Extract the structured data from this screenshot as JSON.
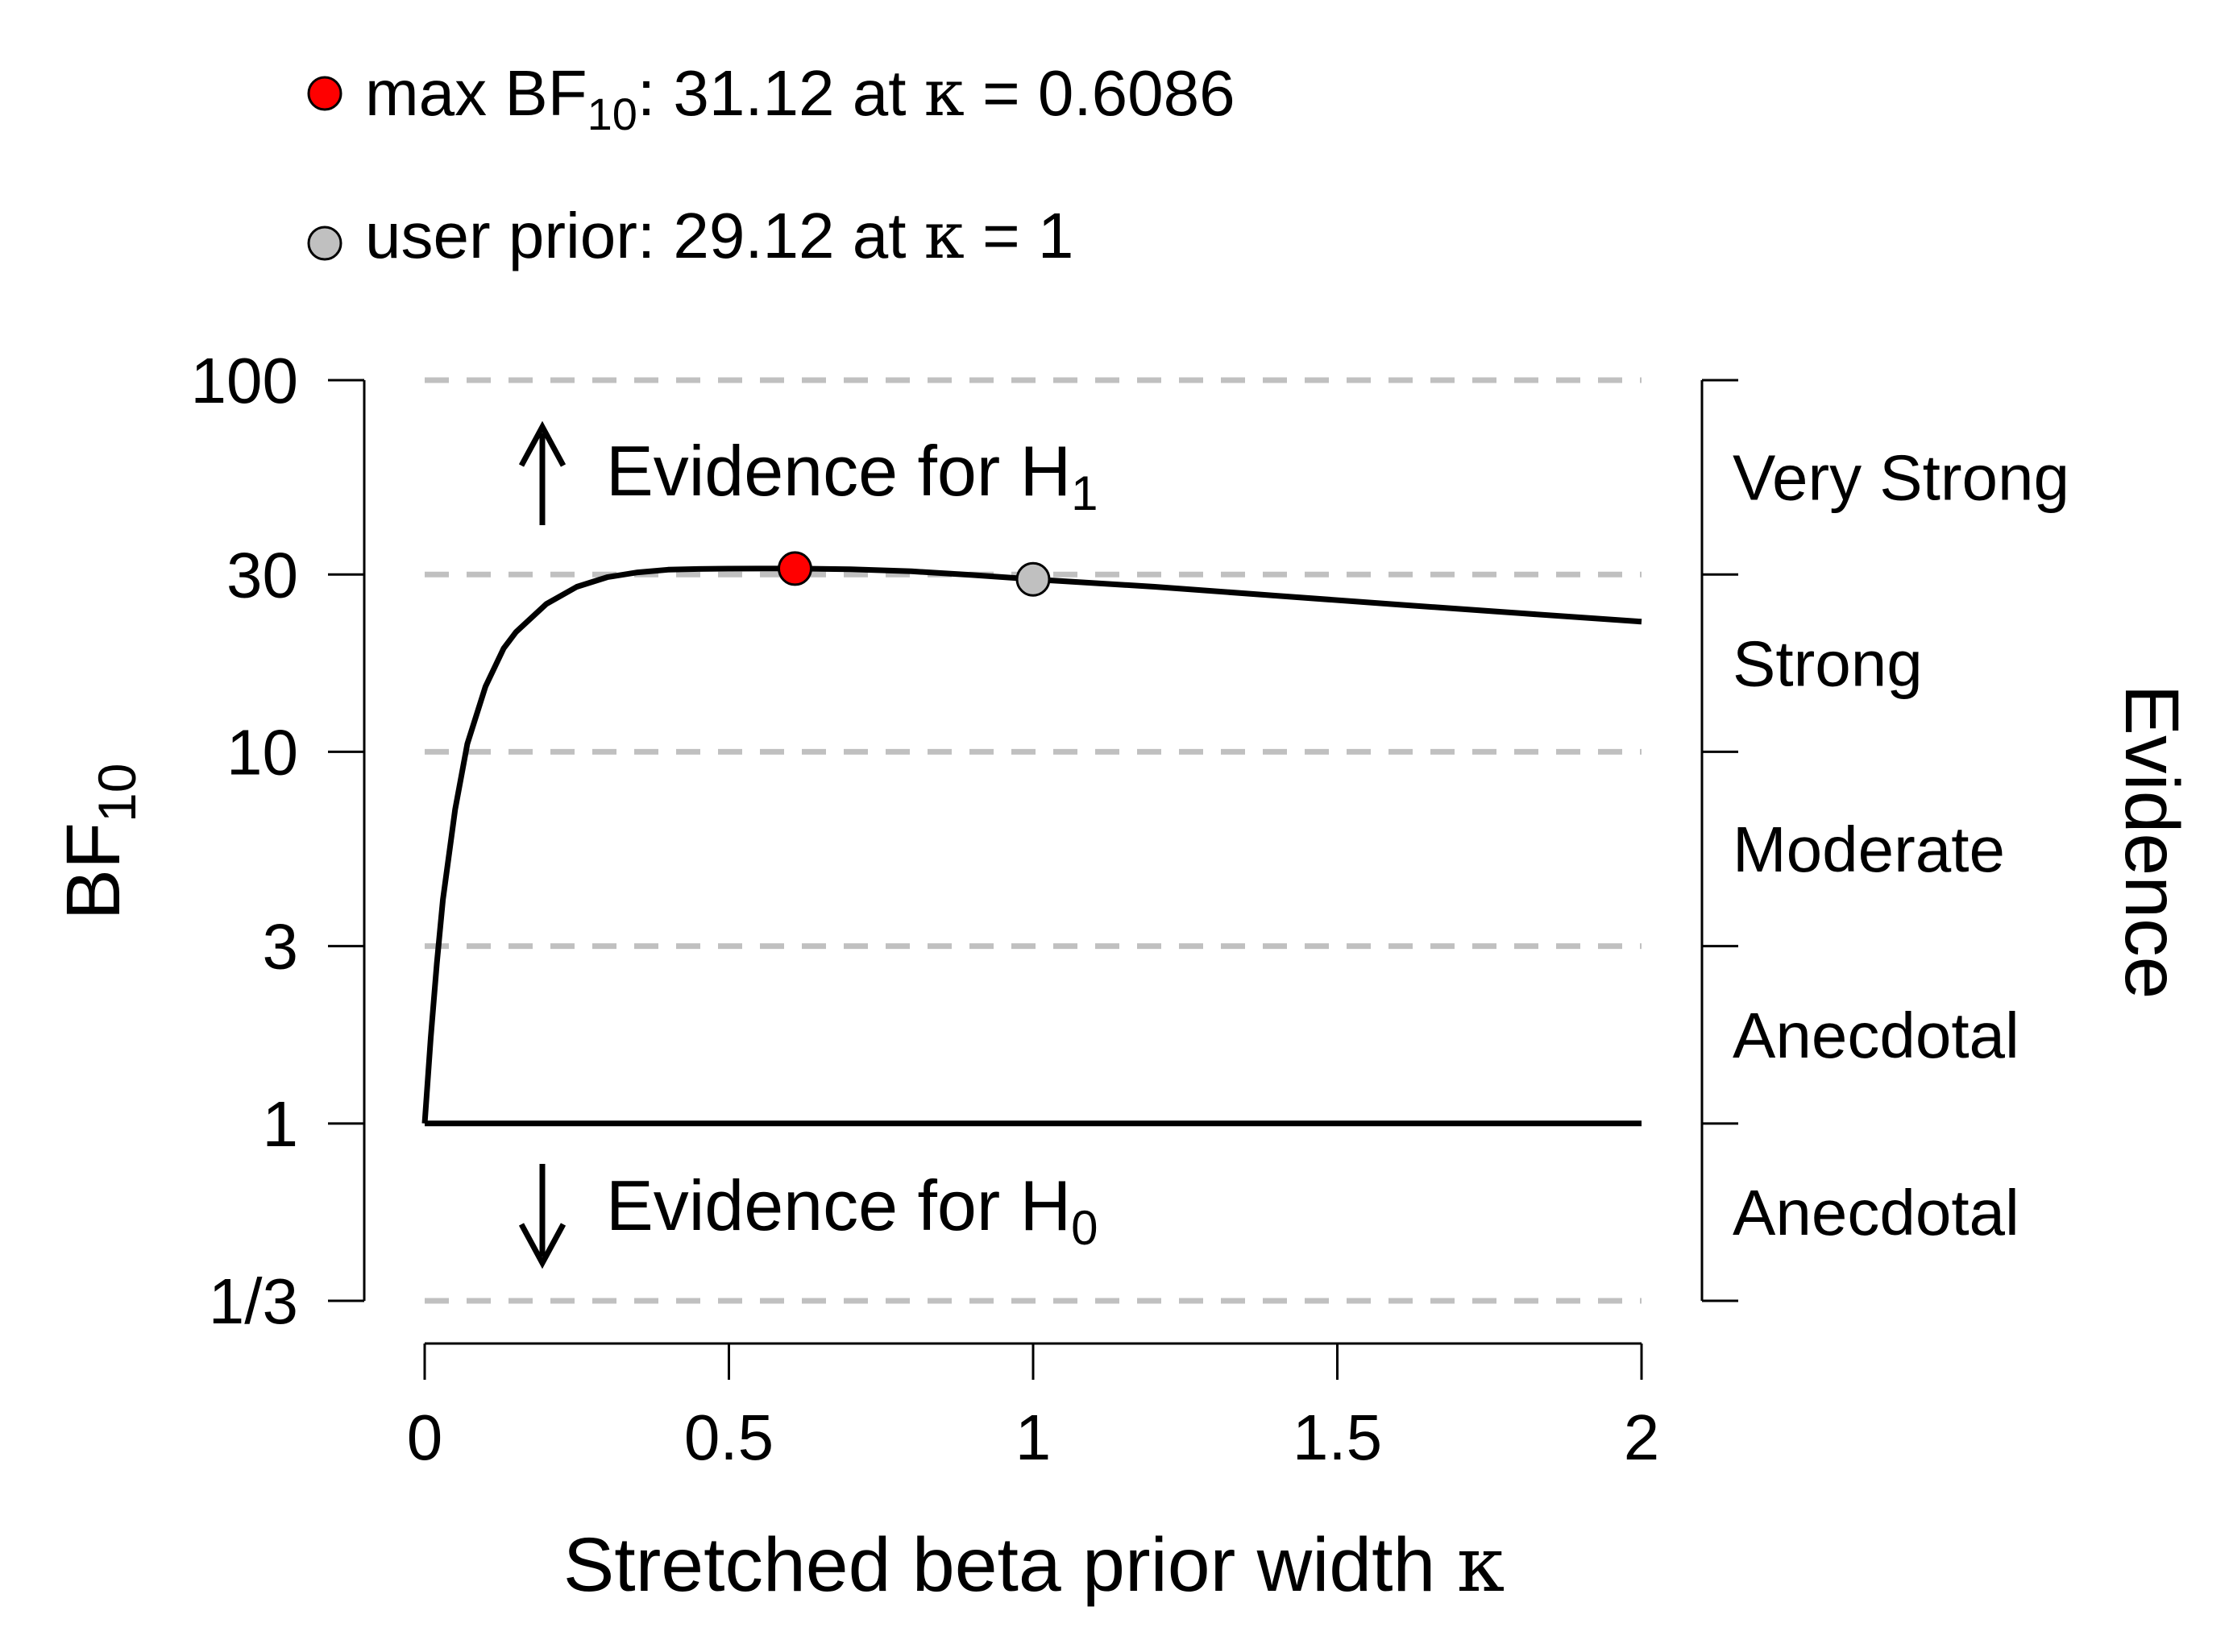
{
  "chart_data": {
    "type": "line",
    "title": "",
    "xlabel": "Stretched beta prior width",
    "xlabel_symbol": "κ",
    "ylabel": "BF",
    "ylabel_subscript": "10",
    "y_scale": "log",
    "xlim": [
      0,
      2
    ],
    "ylim": [
      0.3333,
      100
    ],
    "x_ticks": [
      0,
      0.5,
      1,
      1.5,
      2
    ],
    "x_tick_labels": [
      "0",
      "0.5",
      "1",
      "1.5",
      "2"
    ],
    "y_ticks": [
      0.3333,
      1,
      3,
      10,
      30,
      100
    ],
    "y_tick_labels": [
      "1/3",
      "1",
      "3",
      "10",
      "30",
      "100"
    ],
    "reference_lines": [
      0.3333,
      3,
      10,
      30,
      100
    ],
    "series": [
      {
        "name": "BF10",
        "color": "#000000",
        "x": [
          0,
          0.01,
          0.02,
          0.03,
          0.05,
          0.07,
          0.1,
          0.13,
          0.15,
          0.2,
          0.25,
          0.3,
          0.35,
          0.4,
          0.45,
          0.5,
          0.55,
          0.6086,
          0.7,
          0.8,
          0.9,
          1.0,
          1.2,
          1.4,
          1.6,
          1.8,
          2.0
        ],
        "y": [
          1.0,
          1.7,
          2.7,
          4.0,
          7.0,
          10.5,
          15.0,
          19.0,
          21.0,
          25.0,
          27.8,
          29.5,
          30.4,
          30.9,
          31.05,
          31.1,
          31.12,
          31.12,
          31.0,
          30.6,
          29.9,
          29.12,
          27.8,
          26.3,
          24.9,
          23.6,
          22.4
        ]
      },
      {
        "name": "BF = 1",
        "color": "#000000",
        "x": [
          0,
          2
        ],
        "y": [
          1,
          1
        ]
      }
    ],
    "points": [
      {
        "name": "max BF10",
        "x": 0.6086,
        "y": 31.12,
        "color": "#ff0000"
      },
      {
        "name": "user prior",
        "x": 1,
        "y": 29.12,
        "color": "#c0c0c0"
      }
    ],
    "legend": {
      "placement": "top-left",
      "entries": [
        {
          "marker_color": "#ff0000",
          "label": "max BF",
          "label_subscript": "10",
          "label_rest": ": 31.12 at",
          "kappa_symbol": "κ",
          "equals": "=",
          "value": "0.6086"
        },
        {
          "marker_color": "#c0c0c0",
          "label": "user prior",
          "label_subscript": "",
          "label_rest": ": 29.12 at",
          "kappa_symbol": "κ",
          "equals": "=",
          "value": "1"
        }
      ]
    },
    "annotations": {
      "h1": {
        "arrow": "↑",
        "text": "Evidence for H",
        "subscript": "1"
      },
      "h0": {
        "arrow": "↓",
        "text": "Evidence for H",
        "subscript": "0"
      }
    },
    "evidence_axis": {
      "title": "Evidence",
      "categories": [
        {
          "label": "Very Strong",
          "from": 30,
          "to": 100
        },
        {
          "label": "Strong",
          "from": 10,
          "to": 30
        },
        {
          "label": "Moderate",
          "from": 3,
          "to": 10
        },
        {
          "label": "Anecdotal",
          "from": 1,
          "to": 3
        },
        {
          "label": "Anecdotal",
          "from": 0.3333,
          "to": 1
        }
      ]
    }
  }
}
